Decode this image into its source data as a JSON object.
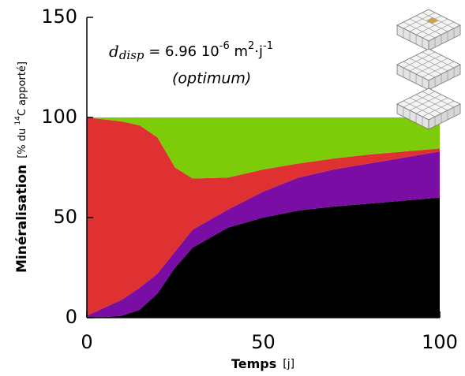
{
  "chart_data": {
    "type": "stacked_area",
    "x": [
      0,
      5,
      10,
      15,
      20,
      25,
      30,
      40,
      50,
      60,
      70,
      80,
      90,
      100
    ],
    "series": [
      {
        "color": "#000000",
        "values": [
          0,
          0.3,
          1,
          4,
          12,
          25,
          35,
          45,
          50,
          53.5,
          55.5,
          57,
          58.5,
          60
        ]
      },
      {
        "color": "#7a0da3",
        "values": [
          1,
          4.7,
          8,
          11,
          10,
          8,
          9,
          9,
          13,
          16.5,
          18.5,
          20,
          21.5,
          23
        ]
      },
      {
        "color": "#df3131",
        "values": [
          99,
          94,
          89,
          81,
          68,
          42,
          25.5,
          16,
          11,
          7,
          5.5,
          4.5,
          3,
          1.5
        ]
      },
      {
        "color": "#7dcc0a",
        "values": [
          0,
          1,
          2,
          4,
          10,
          25,
          30.5,
          30,
          26,
          23,
          20.5,
          18.5,
          17,
          15.5
        ]
      }
    ],
    "xlim": [
      0,
      100
    ],
    "ylim": [
      0,
      150
    ],
    "xticks": [
      0,
      50,
      100
    ],
    "yticks": [
      0,
      50,
      100,
      150
    ],
    "x_label": {
      "main": "Temps",
      "unit": "[j]"
    },
    "y_label": {
      "main": "Minéralisation",
      "unit_start": "[% du ",
      "isotope": "14",
      "unit_end": "C apporté]"
    },
    "annotation": {
      "symbol": "d",
      "subscript": "disp",
      "value": " = 6.96 10",
      "exponent": "-6",
      "unit": " m",
      "unit_exponent": "2",
      "unit_rest": "·j",
      "unit_exponent2": "-1",
      "note": "(optimum)"
    }
  }
}
